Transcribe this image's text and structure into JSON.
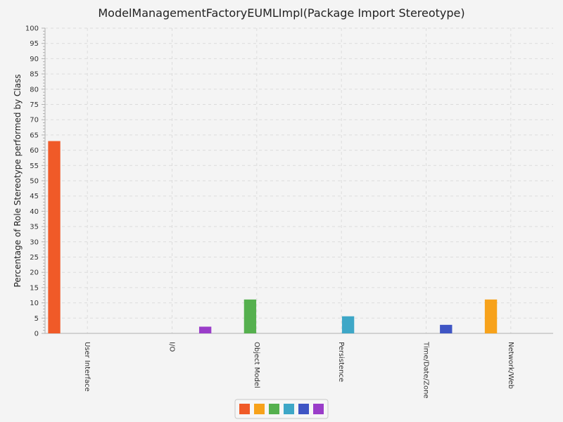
{
  "chart_data": {
    "type": "bar",
    "title": "ModelManagementFactoryEUMLImpl(Package Import Stereotype)",
    "xlabel": "",
    "ylabel": "Percentage of Role Stereotype performed by Class",
    "ylim": [
      0,
      100
    ],
    "ytick_step": 5,
    "minor_ticks_per_step": 5,
    "grid": true,
    "legend_position": "bottom-center",
    "categories": [
      "User Interface",
      "I/O",
      "Object Model",
      "Persistence",
      "Time/Date/Zone",
      "Network/Web"
    ],
    "series": [
      {
        "color": "#f05a28",
        "values": [
          63,
          0,
          0,
          0,
          0,
          0
        ]
      },
      {
        "color": "#f7a21b",
        "values": [
          0,
          0,
          0,
          0,
          0,
          11.1
        ]
      },
      {
        "color": "#55b04e",
        "values": [
          0,
          0,
          11.1,
          0,
          0,
          0
        ]
      },
      {
        "color": "#3ea7c7",
        "values": [
          0,
          0,
          0,
          5.6,
          0,
          0
        ]
      },
      {
        "color": "#3f55c4",
        "values": [
          0,
          0,
          0,
          0,
          2.8,
          0
        ]
      },
      {
        "color": "#9a3dc9",
        "values": [
          0,
          2.2,
          0,
          0,
          0,
          0
        ]
      }
    ]
  }
}
